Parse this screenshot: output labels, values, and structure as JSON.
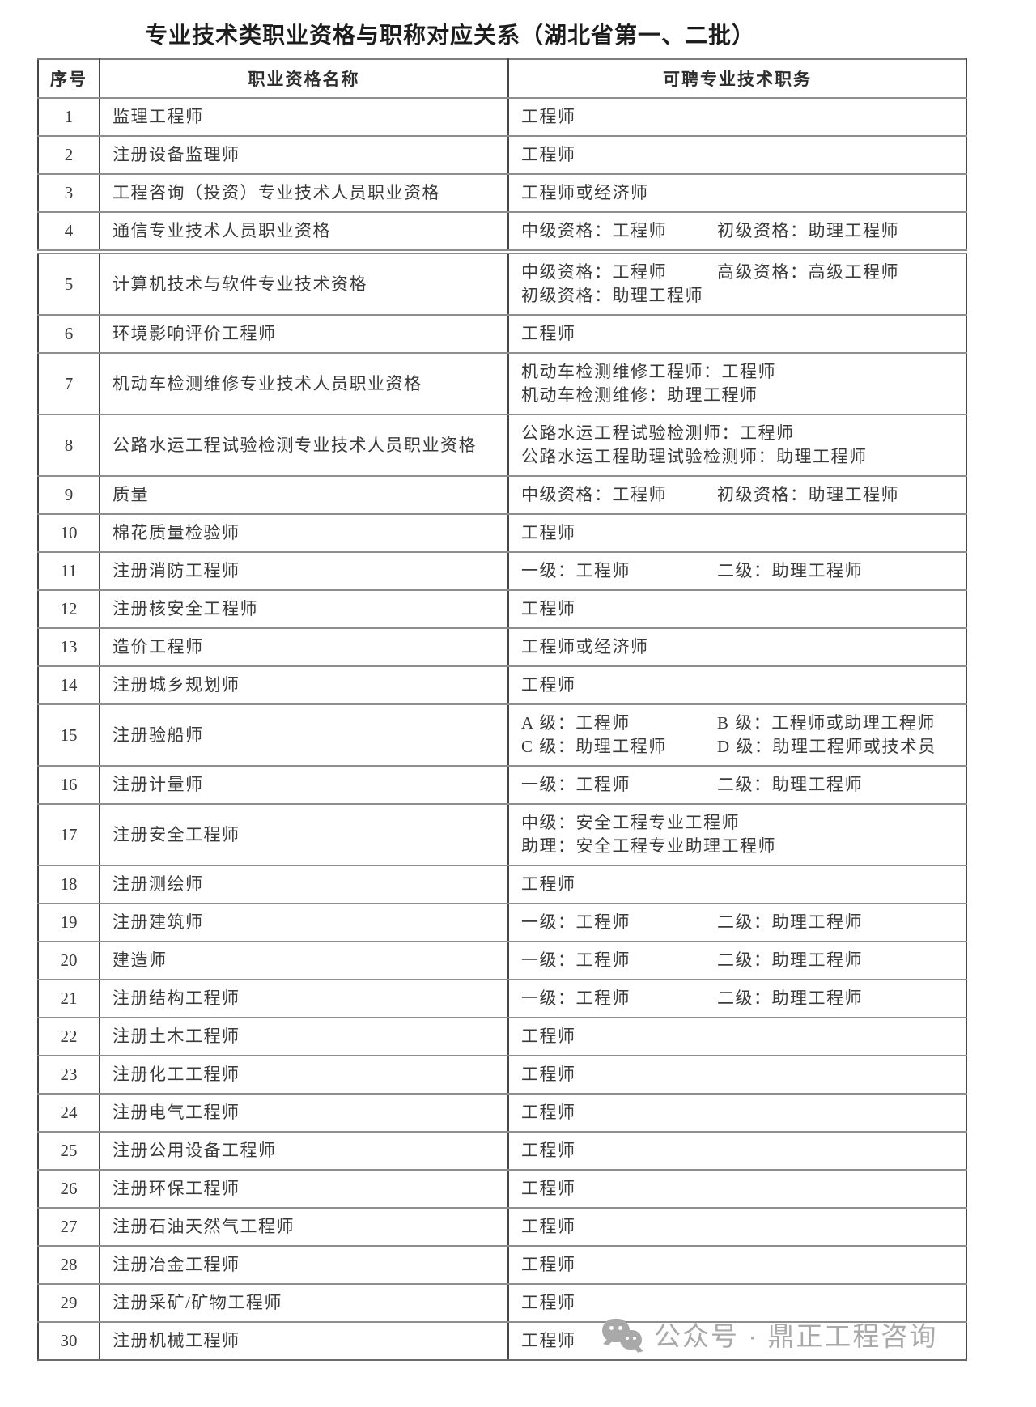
{
  "title": "专业技术类职业资格与职称对应关系（湖北省第一、二批）",
  "table": {
    "headers": [
      "序号",
      "职业资格名称",
      "可聘专业技术职务"
    ],
    "rows": [
      {
        "no": "1",
        "name": "监理工程师",
        "positions": [
          [
            "工程师"
          ]
        ]
      },
      {
        "no": "2",
        "name": "注册设备监理师",
        "positions": [
          [
            "工程师"
          ]
        ]
      },
      {
        "no": "3",
        "name": "工程咨询（投资）专业技术人员职业资格",
        "positions": [
          [
            "工程师或经济师"
          ]
        ]
      },
      {
        "no": "4",
        "name": "通信专业技术人员职业资格",
        "positions": [
          [
            "中级资格：工程师",
            "初级资格：助理工程师"
          ]
        ]
      },
      {
        "no": "5",
        "name": "计算机技术与软件专业技术资格",
        "positions": [
          [
            "中级资格：工程师",
            "高级资格：高级工程师"
          ],
          [
            "初级资格：助理工程师"
          ]
        ]
      },
      {
        "no": "6",
        "name": "环境影响评价工程师",
        "positions": [
          [
            "工程师"
          ]
        ]
      },
      {
        "no": "7",
        "name": "机动车检测维修专业技术人员职业资格",
        "positions": [
          [
            "机动车检测维修工程师：工程师"
          ],
          [
            "机动车检测维修：助理工程师"
          ]
        ]
      },
      {
        "no": "8",
        "name": "公路水运工程试验检测专业技术人员职业资格",
        "positions": [
          [
            "公路水运工程试验检测师：工程师"
          ],
          [
            "公路水运工程助理试验检测师：助理工程师"
          ]
        ]
      },
      {
        "no": "9",
        "name": "质量",
        "positions": [
          [
            "中级资格：工程师",
            "初级资格：助理工程师"
          ]
        ]
      },
      {
        "no": "10",
        "name": "棉花质量检验师",
        "positions": [
          [
            "工程师"
          ]
        ]
      },
      {
        "no": "11",
        "name": "注册消防工程师",
        "positions": [
          [
            "一级：工程师",
            "二级：助理工程师"
          ]
        ]
      },
      {
        "no": "12",
        "name": "注册核安全工程师",
        "positions": [
          [
            "工程师"
          ]
        ]
      },
      {
        "no": "13",
        "name": "造价工程师",
        "positions": [
          [
            "工程师或经济师"
          ]
        ]
      },
      {
        "no": "14",
        "name": "注册城乡规划师",
        "positions": [
          [
            "工程师"
          ]
        ]
      },
      {
        "no": "15",
        "name": "注册验船师",
        "positions": [
          [
            "A 级：工程师",
            "B 级：工程师或助理工程师"
          ],
          [
            "C 级：助理工程师",
            "D 级：助理工程师或技术员"
          ]
        ]
      },
      {
        "no": "16",
        "name": "注册计量师",
        "positions": [
          [
            "一级：工程师",
            "二级：助理工程师"
          ]
        ]
      },
      {
        "no": "17",
        "name": "注册安全工程师",
        "positions": [
          [
            "中级：安全工程专业工程师"
          ],
          [
            "助理：安全工程专业助理工程师"
          ]
        ]
      },
      {
        "no": "18",
        "name": "注册测绘师",
        "positions": [
          [
            "工程师"
          ]
        ]
      },
      {
        "no": "19",
        "name": "注册建筑师",
        "positions": [
          [
            "一级：工程师",
            "二级：助理工程师"
          ]
        ]
      },
      {
        "no": "20",
        "name": "建造师",
        "positions": [
          [
            "一级：工程师",
            "二级：助理工程师"
          ]
        ]
      },
      {
        "no": "21",
        "name": "注册结构工程师",
        "positions": [
          [
            "一级：工程师",
            "二级：助理工程师"
          ]
        ]
      },
      {
        "no": "22",
        "name": "注册土木工程师",
        "positions": [
          [
            "工程师"
          ]
        ]
      },
      {
        "no": "23",
        "name": "注册化工工程师",
        "positions": [
          [
            "工程师"
          ]
        ]
      },
      {
        "no": "24",
        "name": "注册电气工程师",
        "positions": [
          [
            "工程师"
          ]
        ]
      },
      {
        "no": "25",
        "name": "注册公用设备工程师",
        "positions": [
          [
            "工程师"
          ]
        ]
      },
      {
        "no": "26",
        "name": "注册环保工程师",
        "positions": [
          [
            "工程师"
          ]
        ]
      },
      {
        "no": "27",
        "name": "注册石油天然气工程师",
        "positions": [
          [
            "工程师"
          ]
        ]
      },
      {
        "no": "28",
        "name": "注册冶金工程师",
        "positions": [
          [
            "工程师"
          ]
        ]
      },
      {
        "no": "29",
        "name": "注册采矿/矿物工程师",
        "positions": [
          [
            "工程师"
          ]
        ]
      },
      {
        "no": "30",
        "name": "注册机械工程师",
        "positions": [
          [
            "工程师"
          ]
        ]
      }
    ]
  },
  "watermark": {
    "icon": "wechat-icon",
    "text": "公众号 · 鼎正工程咨询",
    "color": "#a9a9a9"
  },
  "colors": {
    "page_background": "#ffffff",
    "text": "#3a3a3a",
    "title_text": "#1d1d1d",
    "border_vertical": "#474747",
    "border_horizontal": "#8e8e8e",
    "watermark": "#a9a9a9"
  }
}
